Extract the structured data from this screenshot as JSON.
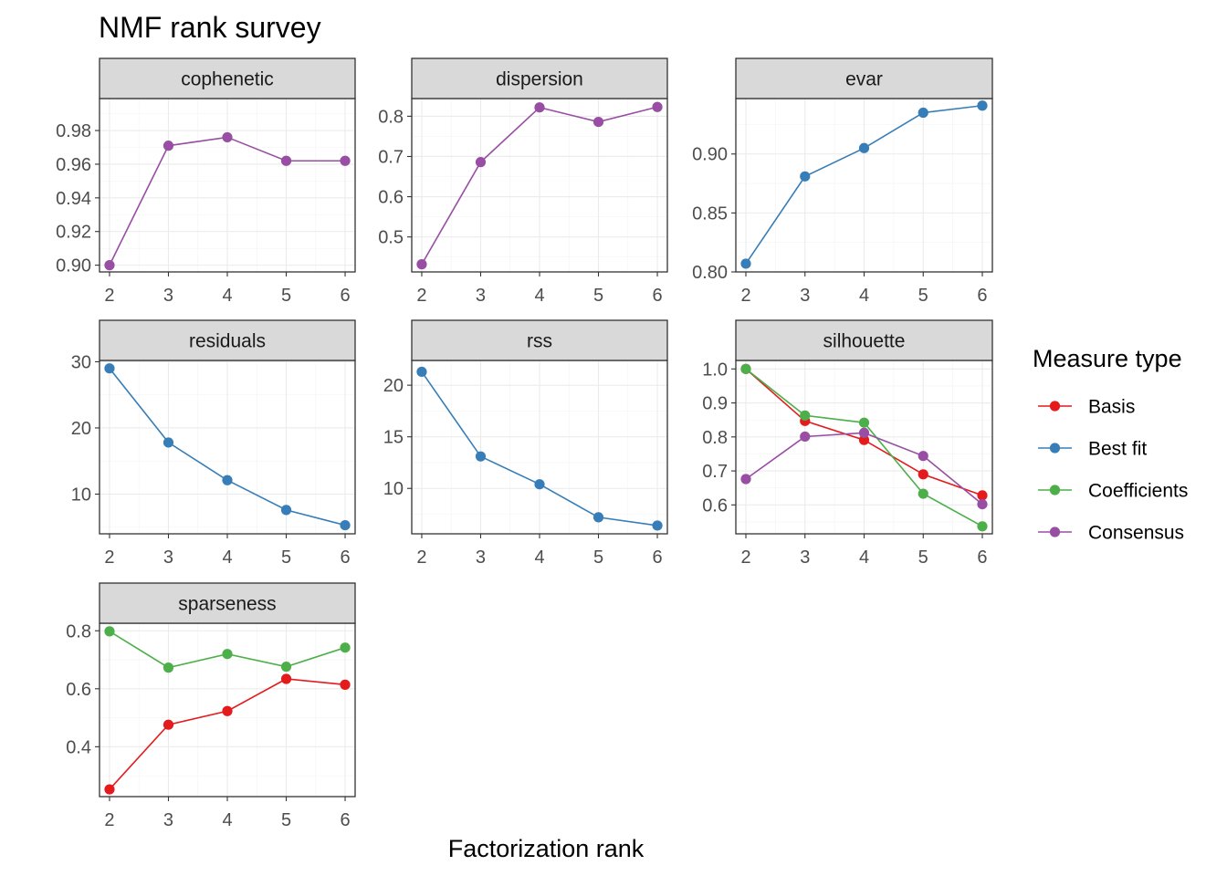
{
  "chart_data": {
    "type": "line",
    "title": "NMF rank survey",
    "xlabel": "Factorization rank",
    "legend": {
      "title": "Measure type",
      "placement": "right",
      "entries": [
        {
          "name": "Basis",
          "color": "#E41A1C"
        },
        {
          "name": "Best fit",
          "color": "#377EB8"
        },
        {
          "name": "Coefficients",
          "color": "#4DAF4A"
        },
        {
          "name": "Consensus",
          "color": "#984EA3"
        }
      ]
    },
    "x": [
      2,
      3,
      4,
      5,
      6
    ],
    "grid": true,
    "panels": [
      {
        "name": "cophenetic",
        "ylim": [
          0.896,
          0.999
        ],
        "yticks": [
          0.9,
          0.92,
          0.94,
          0.96,
          0.98
        ],
        "ytick_labels": [
          "0.90",
          "0.92",
          "0.94",
          "0.96",
          "0.98"
        ],
        "series": [
          {
            "name": "Consensus",
            "values": [
              0.9,
              0.971,
              0.976,
              0.962,
              0.962
            ]
          }
        ]
      },
      {
        "name": "dispersion",
        "ylim": [
          0.413,
          0.844
        ],
        "yticks": [
          0.5,
          0.6,
          0.7,
          0.8
        ],
        "ytick_labels": [
          "0.5",
          "0.6",
          "0.7",
          "0.8"
        ],
        "series": [
          {
            "name": "Consensus",
            "values": [
              0.432,
              0.686,
              0.822,
              0.786,
              0.823
            ]
          }
        ]
      },
      {
        "name": "evar",
        "ylim": [
          0.8,
          0.947
        ],
        "yticks": [
          0.8,
          0.85,
          0.9
        ],
        "ytick_labels": [
          "0.80",
          "0.85",
          "0.90"
        ],
        "series": [
          {
            "name": "Best fit",
            "values": [
              0.807,
              0.881,
              0.905,
              0.935,
              0.941
            ]
          }
        ]
      },
      {
        "name": "residuals",
        "ylim": [
          4.0,
          30.2
        ],
        "yticks": [
          10,
          20,
          30
        ],
        "ytick_labels": [
          "10",
          "20",
          "30"
        ],
        "series": [
          {
            "name": "Best fit",
            "values": [
              29.0,
              17.8,
              12.1,
              7.6,
              5.3
            ]
          }
        ]
      },
      {
        "name": "rss",
        "ylim": [
          5.6,
          22.4
        ],
        "yticks": [
          10,
          15,
          20
        ],
        "ytick_labels": [
          "10",
          "15",
          "20"
        ],
        "series": [
          {
            "name": "Best fit",
            "values": [
              21.3,
              13.1,
              10.4,
              7.2,
              6.4
            ]
          }
        ]
      },
      {
        "name": "silhouette",
        "ylim": [
          0.515,
          1.025
        ],
        "yticks": [
          0.6,
          0.7,
          0.8,
          0.9,
          1.0
        ],
        "ytick_labels": [
          "0.6",
          "0.7",
          "0.8",
          "0.9",
          "1.0"
        ],
        "series": [
          {
            "name": "Basis",
            "values": [
              1.0,
              0.847,
              0.791,
              0.69,
              0.628
            ]
          },
          {
            "name": "Coefficients",
            "values": [
              1.0,
              0.863,
              0.842,
              0.633,
              0.537
            ]
          },
          {
            "name": "Consensus",
            "values": [
              0.676,
              0.801,
              0.812,
              0.744,
              0.602
            ]
          }
        ]
      },
      {
        "name": "sparseness",
        "ylim": [
          0.228,
          0.826
        ],
        "yticks": [
          0.4,
          0.6,
          0.8
        ],
        "ytick_labels": [
          "0.4",
          "0.6",
          "0.8"
        ],
        "series": [
          {
            "name": "Coefficients",
            "values": [
              0.798,
              0.673,
              0.72,
              0.676,
              0.742
            ]
          },
          {
            "name": "Basis",
            "values": [
              0.253,
              0.476,
              0.523,
              0.634,
              0.614
            ]
          }
        ]
      }
    ]
  }
}
